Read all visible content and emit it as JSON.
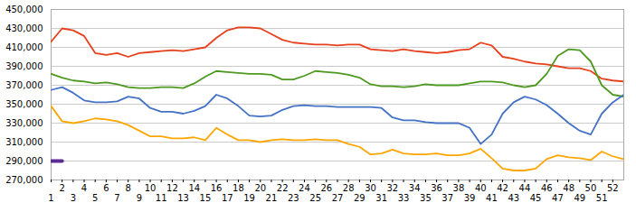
{
  "chart_data": {
    "type": "line",
    "x": [
      1,
      2,
      3,
      4,
      5,
      6,
      7,
      8,
      9,
      10,
      11,
      12,
      13,
      14,
      15,
      16,
      17,
      18,
      19,
      20,
      21,
      22,
      23,
      24,
      25,
      26,
      27,
      28,
      29,
      30,
      31,
      32,
      33,
      34,
      35,
      36,
      37,
      38,
      39,
      40,
      41,
      42,
      43,
      44,
      45,
      46,
      47,
      48,
      49,
      50,
      51,
      52,
      53
    ],
    "series": [
      {
        "color": "#e8401c",
        "values": [
          416000,
          430000,
          428000,
          422000,
          404000,
          402000,
          404000,
          400000,
          404000,
          405000,
          406000,
          407000,
          406000,
          408000,
          410000,
          420000,
          428000,
          431000,
          431000,
          430000,
          424000,
          418000,
          415000,
          414000,
          413000,
          413000,
          412000,
          413000,
          413000,
          408000,
          407000,
          406000,
          408000,
          406000,
          405000,
          404000,
          405000,
          407000,
          408000,
          415000,
          412000,
          400000,
          398000,
          395000,
          393000,
          392000,
          390000,
          388000,
          388000,
          385000,
          377000,
          375000,
          374000
        ]
      },
      {
        "color": "#4e9a20",
        "values": [
          382000,
          378000,
          375000,
          374000,
          372000,
          373000,
          371000,
          368000,
          367000,
          367000,
          368000,
          368000,
          367000,
          372000,
          379000,
          385000,
          384000,
          383000,
          382000,
          382000,
          381000,
          376000,
          376000,
          380000,
          385000,
          384000,
          383000,
          381000,
          378000,
          371000,
          369000,
          369000,
          368000,
          369000,
          371000,
          370000,
          370000,
          370000,
          372000,
          374000,
          374000,
          373000,
          370000,
          368000,
          370000,
          382000,
          401000,
          408000,
          407000,
          395000,
          370000,
          360000,
          358000
        ]
      },
      {
        "color": "#4472c4",
        "values": [
          365000,
          368000,
          362000,
          354000,
          352000,
          352000,
          353000,
          358000,
          356000,
          346000,
          342000,
          342000,
          340000,
          343000,
          348000,
          360000,
          356000,
          348000,
          338000,
          337000,
          338000,
          344000,
          348000,
          349000,
          348000,
          348000,
          347000,
          347000,
          347000,
          347000,
          346000,
          336000,
          333000,
          333000,
          331000,
          330000,
          330000,
          330000,
          325000,
          308000,
          318000,
          340000,
          352000,
          358000,
          355000,
          349000,
          340000,
          330000,
          322000,
          318000,
          340000,
          352000,
          360000
        ]
      },
      {
        "color": "#ffa500",
        "values": [
          348000,
          332000,
          330000,
          332000,
          335000,
          334000,
          332000,
          328000,
          322000,
          316000,
          316000,
          314000,
          314000,
          315000,
          312000,
          325000,
          318000,
          312000,
          312000,
          310000,
          312000,
          313000,
          312000,
          312000,
          313000,
          312000,
          312000,
          308000,
          305000,
          297000,
          298000,
          302000,
          298000,
          297000,
          297000,
          298000,
          296000,
          296000,
          298000,
          303000,
          293000,
          282000,
          280000,
          280000,
          282000,
          292000,
          296000,
          294000,
          293000,
          291000,
          300000,
          295000,
          292000
        ]
      },
      {
        "color": "#5c2d91",
        "x": [
          1,
          2
        ],
        "values": [
          290000,
          290000
        ]
      }
    ],
    "xlim": [
      1,
      53
    ],
    "xticks": [
      1,
      2,
      3,
      4,
      5,
      6,
      7,
      8,
      9,
      10,
      11,
      12,
      13,
      14,
      15,
      16,
      17,
      18,
      19,
      20,
      21,
      22,
      23,
      24,
      25,
      26,
      27,
      28,
      29,
      30,
      31,
      32,
      33,
      34,
      35,
      36,
      37,
      38,
      39,
      40,
      41,
      42,
      43,
      44,
      45,
      46,
      47,
      48,
      49,
      50,
      51,
      52
    ],
    "ylim": [
      270000,
      450000
    ],
    "yticks": [
      {
        "value": 270000,
        "label": "270,000"
      },
      {
        "value": 290000,
        "label": "290,000"
      },
      {
        "value": 310000,
        "label": "310,000"
      },
      {
        "value": 330000,
        "label": "330,000"
      },
      {
        "value": 350000,
        "label": "350,000"
      },
      {
        "value": 370000,
        "label": "370,000"
      },
      {
        "value": 390000,
        "label": "390,000"
      },
      {
        "value": 410000,
        "label": "410,000"
      },
      {
        "value": 430000,
        "label": "430,000"
      },
      {
        "value": 450000,
        "label": "450,000"
      }
    ],
    "grid": true
  }
}
